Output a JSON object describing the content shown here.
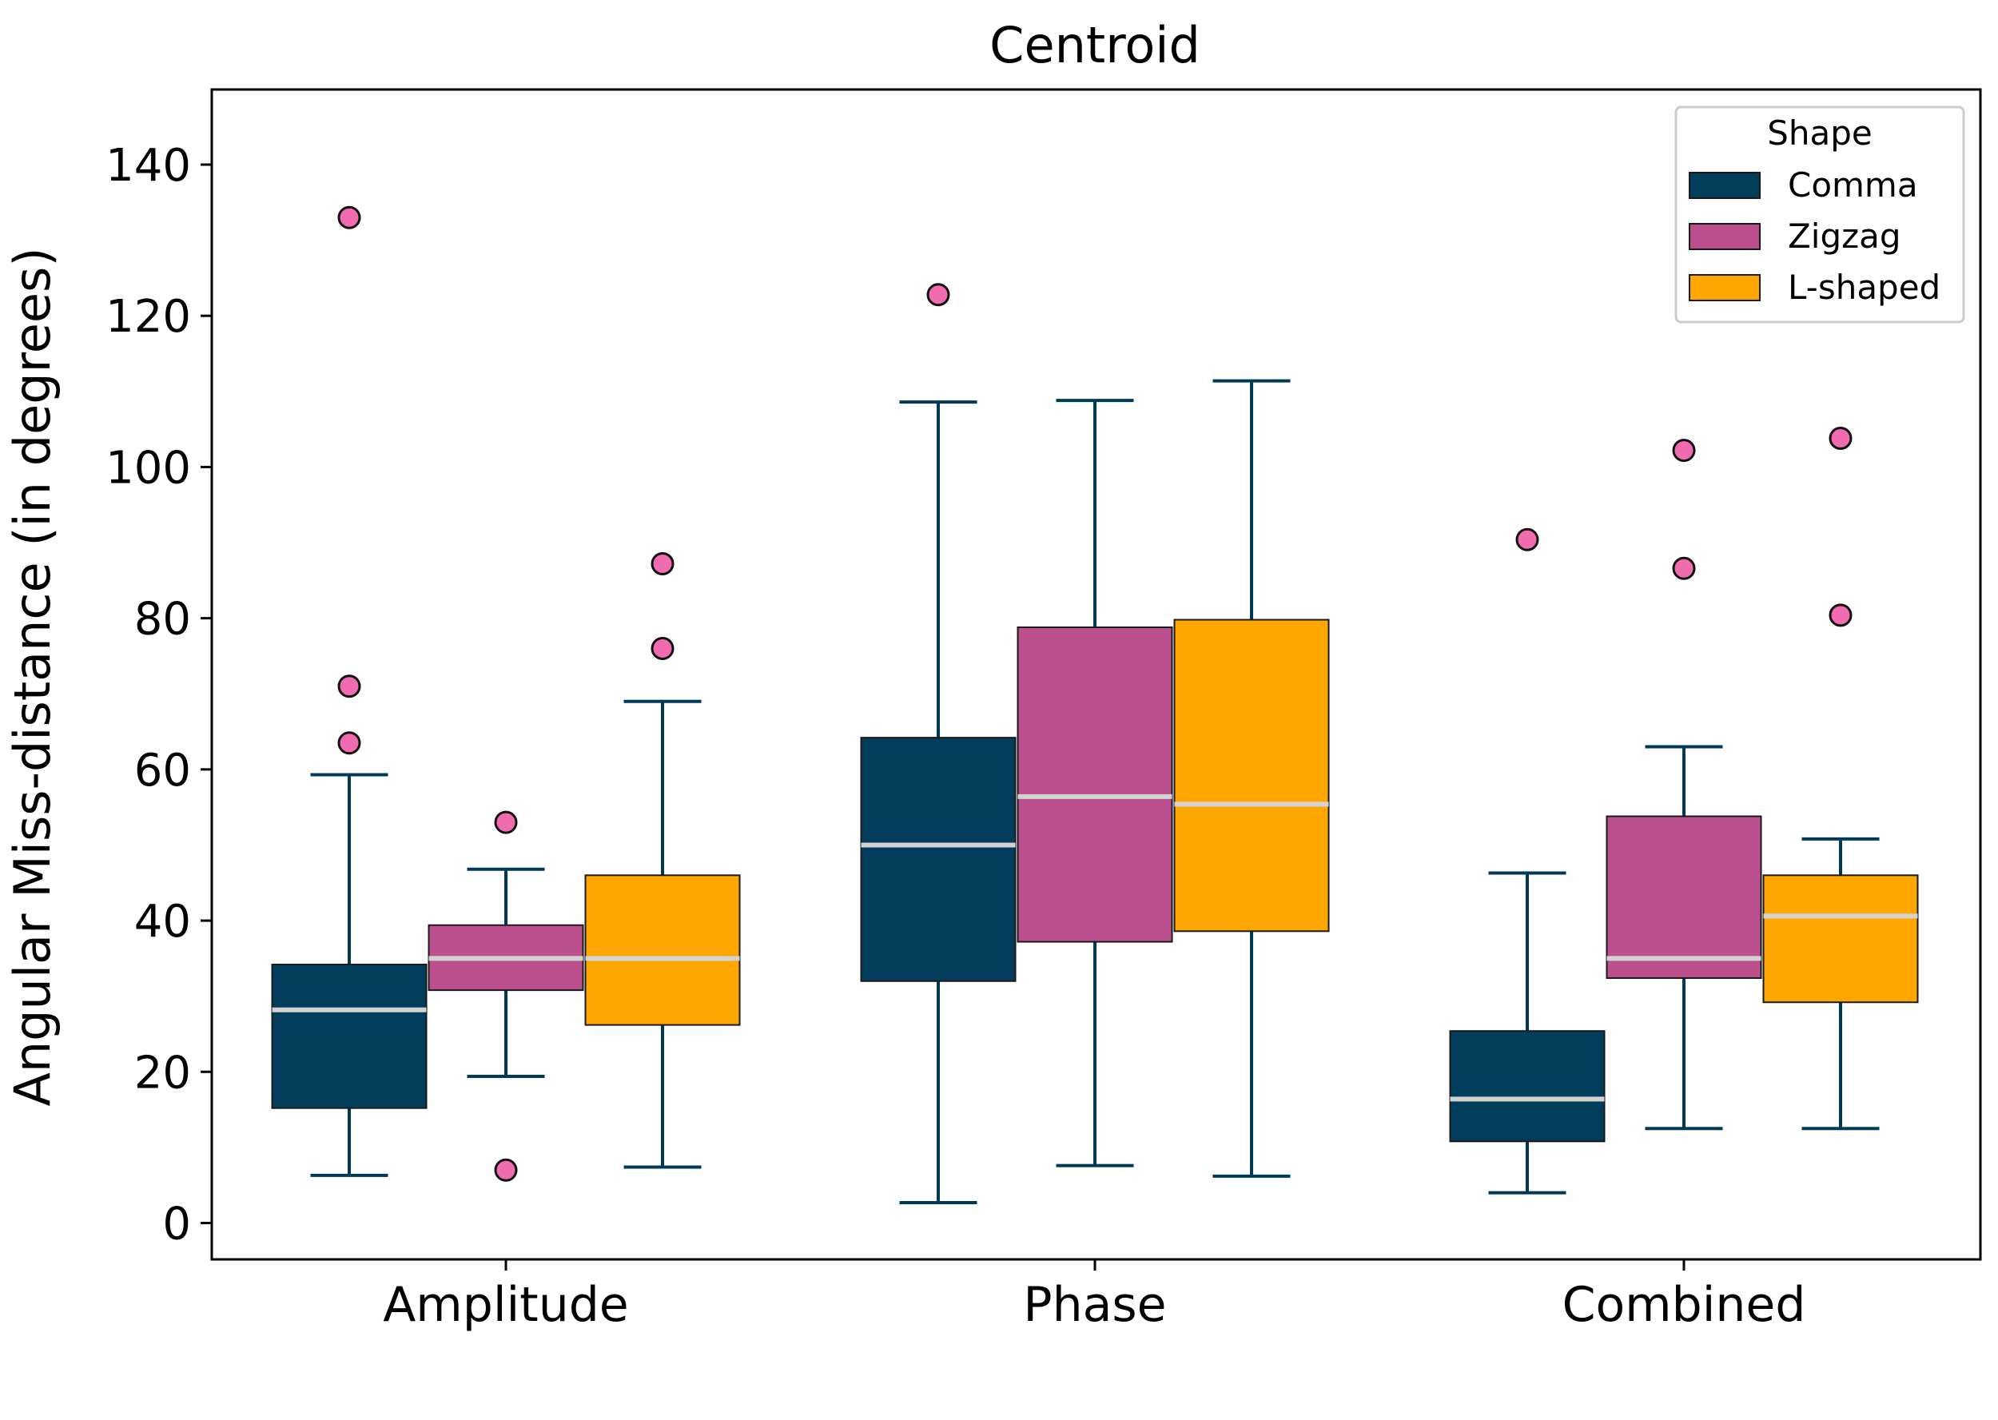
{
  "chart_data": {
    "type": "boxplot",
    "title": "Centroid",
    "xlabel": "",
    "ylabel": "Angular Miss-distance (in degrees)",
    "ylim": [
      -5,
      150
    ],
    "yticks": [
      0,
      20,
      40,
      60,
      80,
      100,
      120,
      140
    ],
    "categories": [
      "Amplitude",
      "Phase",
      "Combined"
    ],
    "legend": {
      "title": "Shape",
      "position": "top-right"
    },
    "whisker_color": "#003a59",
    "median_color": "#d3d3d3",
    "outlier_color": "#f06bb0",
    "series": [
      {
        "name": "Comma",
        "color": "#023d5c",
        "boxes": [
          {
            "q1": 15.2,
            "median": 28.2,
            "q3": 34.2,
            "whislo": 6.3,
            "whishi": 59.3,
            "fliers": [
              63.5,
              71.0,
              133.0
            ]
          },
          {
            "q1": 32.0,
            "median": 50.0,
            "q3": 64.2,
            "whislo": 2.7,
            "whishi": 108.6,
            "fliers": [
              122.8
            ]
          },
          {
            "q1": 10.8,
            "median": 16.4,
            "q3": 25.4,
            "whislo": 4.0,
            "whishi": 46.3,
            "fliers": [
              90.4
            ]
          }
        ]
      },
      {
        "name": "Zigzag",
        "color": "#bc508f",
        "boxes": [
          {
            "q1": 30.8,
            "median": 35.0,
            "q3": 39.4,
            "whislo": 19.4,
            "whishi": 46.8,
            "fliers": [
              7.0,
              53.0
            ]
          },
          {
            "q1": 37.2,
            "median": 56.4,
            "q3": 78.8,
            "whislo": 7.6,
            "whishi": 108.8,
            "fliers": []
          },
          {
            "q1": 32.4,
            "median": 35.0,
            "q3": 53.8,
            "whislo": 12.5,
            "whishi": 63.0,
            "fliers": [
              86.6,
              102.2
            ]
          }
        ]
      },
      {
        "name": "L-shaped",
        "color": "#ffa600",
        "boxes": [
          {
            "q1": 26.2,
            "median": 35.0,
            "q3": 46.0,
            "whislo": 7.4,
            "whishi": 69.0,
            "fliers": [
              76.0,
              87.2
            ]
          },
          {
            "q1": 38.6,
            "median": 55.4,
            "q3": 79.8,
            "whislo": 6.2,
            "whishi": 111.4,
            "fliers": []
          },
          {
            "q1": 29.2,
            "median": 40.6,
            "q3": 46.0,
            "whislo": 12.5,
            "whishi": 50.8,
            "fliers": [
              80.4,
              103.8
            ]
          }
        ]
      }
    ]
  }
}
